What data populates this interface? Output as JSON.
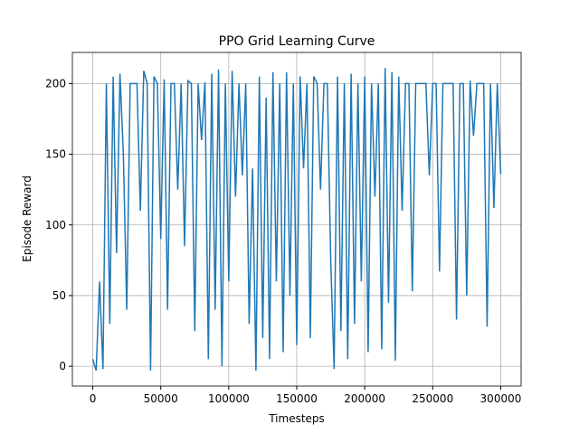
{
  "chart_data": {
    "type": "line",
    "title": "PPO Grid Learning Curve",
    "x_label": "Timesteps",
    "y_label": "Episode Reward",
    "x": [
      0,
      2500,
      5000,
      7500,
      10000,
      12500,
      15000,
      17500,
      20000,
      22500,
      25000,
      27500,
      30000,
      32500,
      35000,
      37500,
      40000,
      42500,
      45000,
      47500,
      50000,
      52500,
      55000,
      57500,
      60000,
      62500,
      65000,
      67500,
      70000,
      72500,
      75000,
      77500,
      80000,
      82500,
      85000,
      87500,
      90000,
      92500,
      95000,
      97500,
      100000,
      102500,
      105000,
      107500,
      110000,
      112500,
      115000,
      117500,
      120000,
      122500,
      125000,
      127500,
      130000,
      132500,
      135000,
      137500,
      140000,
      142500,
      145000,
      147500,
      150000,
      152500,
      155000,
      157500,
      160000,
      162500,
      165000,
      167500,
      170000,
      172500,
      175000,
      177500,
      180000,
      182500,
      185000,
      187500,
      190000,
      192500,
      195000,
      197500,
      200000,
      202500,
      205000,
      207500,
      210000,
      212500,
      215000,
      217500,
      220000,
      222500,
      225000,
      227500,
      230000,
      232500,
      235000,
      237500,
      240000,
      242500,
      245000,
      247500,
      250000,
      252500,
      255000,
      257500,
      260000,
      262500,
      265000,
      267500,
      270000,
      272500,
      275000,
      277500,
      280000,
      282500,
      285000,
      287500,
      290000,
      292500,
      295000,
      297500,
      300000
    ],
    "series": [
      {
        "name": "Episode Reward",
        "color": "#1f77b4",
        "values": [
          5,
          -3,
          60,
          -2,
          200,
          30,
          205,
          80,
          207,
          150,
          40,
          200,
          200,
          200,
          110,
          209,
          200,
          -3,
          205,
          200,
          90,
          203,
          40,
          200,
          200,
          125,
          200,
          85,
          202,
          200,
          25,
          200,
          160,
          201,
          5,
          207,
          40,
          210,
          0,
          200,
          60,
          209,
          120,
          200,
          135,
          200,
          30,
          140,
          -3,
          205,
          20,
          190,
          5,
          208,
          60,
          200,
          10,
          208,
          50,
          200,
          15,
          205,
          140,
          200,
          20,
          205,
          200,
          125,
          200,
          200,
          75,
          -2,
          205,
          25,
          200,
          5,
          207,
          30,
          200,
          60,
          205,
          10,
          200,
          120,
          200,
          12,
          211,
          45,
          208,
          4,
          205,
          110,
          200,
          200,
          53,
          200,
          200,
          200,
          200,
          135,
          200,
          200,
          67,
          200,
          200,
          200,
          200,
          33,
          200,
          200,
          50,
          202,
          163,
          200,
          200,
          200,
          28,
          200,
          112,
          200,
          136
        ]
      }
    ],
    "xlim": [
      -15000,
      315000
    ],
    "ylim": [
      -14,
      222
    ],
    "xticks": [
      0,
      50000,
      100000,
      150000,
      200000,
      250000,
      300000
    ],
    "yticks": [
      0,
      50,
      100,
      150,
      200
    ],
    "grid": true
  }
}
